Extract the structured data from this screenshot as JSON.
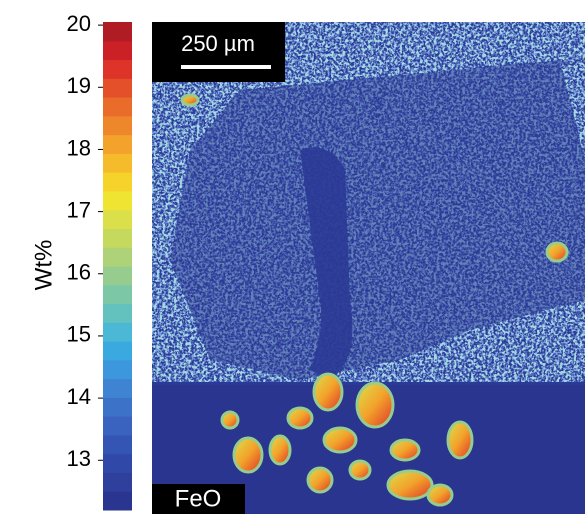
{
  "colorbar": {
    "label": "Wt%",
    "lim": [
      12.2,
      20.05
    ],
    "ticks": [
      13,
      14,
      15,
      16,
      17,
      18,
      19,
      20
    ],
    "colors": [
      "#2a3590",
      "#2e3f9c",
      "#3049a8",
      "#3455b4",
      "#3a63bf",
      "#3d72c9",
      "#3f84d3",
      "#3c97dc",
      "#3aa9e0",
      "#4bb8d6",
      "#63c2be",
      "#7cc7a6",
      "#96cc8d",
      "#aed277",
      "#c6d95f",
      "#dbe04a",
      "#efe431",
      "#f6d32a",
      "#f6bb2a",
      "#f3a22b",
      "#ee872b",
      "#ea6c2b",
      "#e4502a",
      "#dd3328",
      "#cb2026",
      "#b01c24"
    ]
  },
  "scale_bar": {
    "label": "250 µm"
  },
  "map_label": "FeO"
}
